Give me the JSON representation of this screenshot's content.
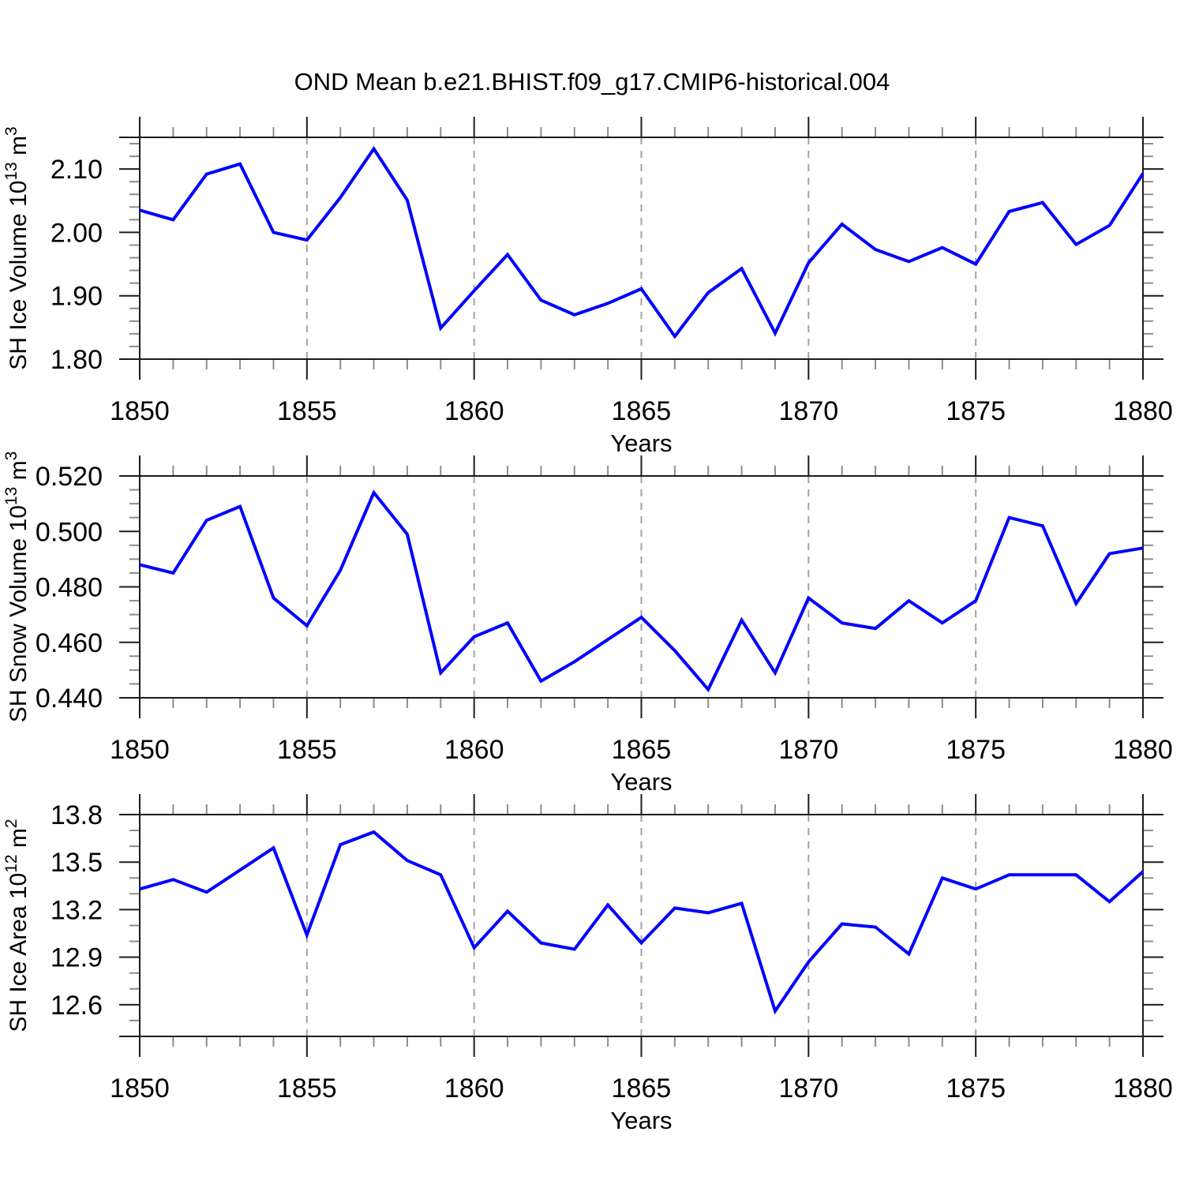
{
  "title": "OND Mean b.e21.BHIST.f09_g17.CMIP6-historical.004",
  "xlabel": "Years",
  "x_tick_labels": [
    "1850",
    "1855",
    "1860",
    "1865",
    "1870",
    "1875",
    "1880"
  ],
  "colors": {
    "line": "#0000ff",
    "frame": "#1c1c1c",
    "major_tick": "#1c1c1c",
    "minor_tick": "#8c8c8c",
    "grid": "#a2a2a2",
    "text": "#000000"
  },
  "chart_data": [
    {
      "type": "line",
      "title": "SH Ice Volume vs Years",
      "ylabel": "SH Ice Volume 10^13 m^3",
      "ylabel_segments": [
        {
          "t": "SH Ice Volume 10"
        },
        {
          "t": "13",
          "sup": true
        },
        {
          "t": " m"
        },
        {
          "t": "3",
          "sup": true
        }
      ],
      "xlabel": "Years",
      "x": [
        1850,
        1851,
        1852,
        1853,
        1854,
        1855,
        1856,
        1857,
        1858,
        1859,
        1860,
        1861,
        1862,
        1863,
        1864,
        1865,
        1866,
        1867,
        1868,
        1869,
        1870,
        1871,
        1872,
        1873,
        1874,
        1875,
        1876,
        1877,
        1878,
        1879,
        1880
      ],
      "values": [
        2.035,
        2.02,
        2.092,
        2.108,
        2.0,
        1.988,
        2.055,
        2.132,
        2.051,
        1.849,
        1.908,
        1.965,
        1.893,
        1.87,
        1.888,
        1.911,
        1.836,
        1.905,
        1.943,
        1.841,
        1.952,
        2.013,
        1.973,
        1.954,
        1.976,
        1.95,
        2.033,
        2.047,
        1.981,
        2.011,
        2.093
      ],
      "ylim": [
        1.8,
        2.15
      ],
      "ytick_values": [
        1.8,
        1.9,
        2.0,
        2.1
      ],
      "ytick_labels": [
        "1.80",
        "1.90",
        "2.00",
        "2.10"
      ],
      "yminor_step": 0.02,
      "xlim": [
        1850,
        1880
      ],
      "xtick_values": [
        1850,
        1855,
        1860,
        1865,
        1870,
        1875,
        1880
      ],
      "xminor_step": 1,
      "grid_x": [
        1855,
        1860,
        1865,
        1870,
        1875
      ],
      "grid_on": "vertical-dashed",
      "legend": "none"
    },
    {
      "type": "line",
      "title": "SH Snow Volume vs Years",
      "ylabel": "SH Snow Volume 10^13 m^3",
      "ylabel_segments": [
        {
          "t": "SH Snow Volume 10"
        },
        {
          "t": "13",
          "sup": true
        },
        {
          "t": " m"
        },
        {
          "t": "3",
          "sup": true
        }
      ],
      "xlabel": "Years",
      "x": [
        1850,
        1851,
        1852,
        1853,
        1854,
        1855,
        1856,
        1857,
        1858,
        1859,
        1860,
        1861,
        1862,
        1863,
        1864,
        1865,
        1866,
        1867,
        1868,
        1869,
        1870,
        1871,
        1872,
        1873,
        1874,
        1875,
        1876,
        1877,
        1878,
        1879,
        1880
      ],
      "values": [
        0.488,
        0.485,
        0.504,
        0.509,
        0.476,
        0.466,
        0.486,
        0.514,
        0.499,
        0.449,
        0.462,
        0.467,
        0.446,
        0.453,
        0.461,
        0.469,
        0.457,
        0.443,
        0.468,
        0.449,
        0.476,
        0.467,
        0.465,
        0.475,
        0.467,
        0.475,
        0.505,
        0.502,
        0.474,
        0.492,
        0.494
      ],
      "ylim": [
        0.44,
        0.52
      ],
      "ytick_values": [
        0.44,
        0.46,
        0.48,
        0.5,
        0.52
      ],
      "ytick_labels": [
        "0.440",
        "0.460",
        "0.480",
        "0.500",
        "0.520"
      ],
      "yminor_step": 0.005,
      "xlim": [
        1850,
        1880
      ],
      "xtick_values": [
        1850,
        1855,
        1860,
        1865,
        1870,
        1875,
        1880
      ],
      "xminor_step": 1,
      "grid_x": [
        1855,
        1860,
        1865,
        1870,
        1875
      ],
      "grid_on": "vertical-dashed",
      "legend": "none"
    },
    {
      "type": "line",
      "title": "SH Ice Area vs Years",
      "ylabel": "SH Ice Area 10^12 m^2",
      "ylabel_segments": [
        {
          "t": "SH Ice Area 10"
        },
        {
          "t": "12",
          "sup": true
        },
        {
          "t": " m"
        },
        {
          "t": "2",
          "sup": true
        }
      ],
      "xlabel": "Years",
      "x": [
        1850,
        1851,
        1852,
        1853,
        1854,
        1855,
        1856,
        1857,
        1858,
        1859,
        1860,
        1861,
        1862,
        1863,
        1864,
        1865,
        1866,
        1867,
        1868,
        1869,
        1870,
        1871,
        1872,
        1873,
        1874,
        1875,
        1876,
        1877,
        1878,
        1879,
        1880
      ],
      "values": [
        13.33,
        13.39,
        13.31,
        13.45,
        13.59,
        13.04,
        13.61,
        13.69,
        13.51,
        13.42,
        12.96,
        13.19,
        12.99,
        12.95,
        13.23,
        12.99,
        13.21,
        13.18,
        13.24,
        12.56,
        12.87,
        13.11,
        13.09,
        12.92,
        13.4,
        13.33,
        13.42,
        13.42,
        13.42,
        13.25,
        13.44
      ],
      "ylim": [
        12.4,
        13.8
      ],
      "ytick_values": [
        12.6,
        12.9,
        13.2,
        13.5,
        13.8
      ],
      "ytick_labels": [
        "12.6",
        "12.9",
        "13.2",
        "13.5",
        "13.8"
      ],
      "yminor_step": 0.1,
      "xlim": [
        1850,
        1880
      ],
      "xtick_values": [
        1850,
        1855,
        1860,
        1865,
        1870,
        1875,
        1880
      ],
      "xminor_step": 1,
      "grid_x": [
        1855,
        1860,
        1865,
        1870,
        1875
      ],
      "grid_on": "vertical-dashed",
      "legend": "none"
    }
  ]
}
